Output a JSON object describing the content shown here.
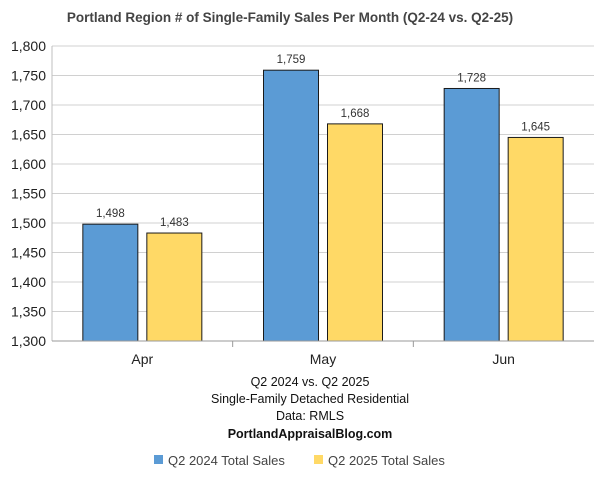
{
  "chart_data": {
    "type": "bar",
    "title": "Portland Region # of Single-Family Sales Per Month (Q2-24 vs. Q2-25)",
    "categories": [
      "Apr",
      "May",
      "Jun"
    ],
    "series": [
      {
        "name": "Q2 2024 Total Sales",
        "color": "#5B9BD5",
        "values": [
          1498,
          1759,
          1728
        ]
      },
      {
        "name": "Q2 2025 Total Sales",
        "color": "#FFD966",
        "values": [
          1483,
          1668,
          1645
        ]
      }
    ],
    "ylim": [
      1300,
      1800
    ],
    "yticks": [
      1300,
      1350,
      1400,
      1450,
      1500,
      1550,
      1600,
      1650,
      1700,
      1750,
      1800
    ],
    "ytick_labels": [
      "1,300",
      "1,350",
      "1,400",
      "1,450",
      "1,500",
      "1,550",
      "1,600",
      "1,650",
      "1,700",
      "1,750",
      "1,800"
    ],
    "data_labels": [
      [
        "1,498",
        "1,759",
        "1,728"
      ],
      [
        "1,483",
        "1,668",
        "1,645"
      ]
    ],
    "grid": true,
    "legend_position": "bottom",
    "notes": [
      "Q2 2024 vs. Q2 2025",
      "Single-Family Detached Residential",
      "Data: RMLS",
      "PortlandAppraisalBlog.com"
    ]
  }
}
